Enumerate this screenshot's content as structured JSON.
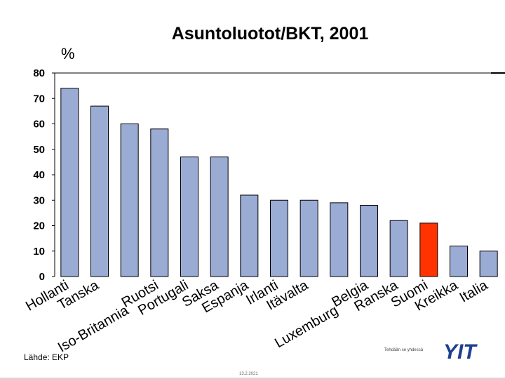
{
  "slide": {
    "title": "Asuntoluotot/BKT, 2001",
    "unit": "%",
    "source": "Lähde: EKP",
    "tagline": "Tehdään se yhdessä",
    "date": "13.2.2021",
    "logo_text": "YIT"
  },
  "colors": {
    "bar": "#9aabd4",
    "highlight": "#ff3300",
    "logo": "#1f3f8f"
  },
  "chart_data": {
    "type": "bar",
    "title": "Asuntoluotot/BKT, 2001",
    "ylabel": "%",
    "xlabel": "",
    "ylim": [
      0,
      80
    ],
    "yticks": [
      0,
      10,
      20,
      30,
      40,
      50,
      60,
      70,
      80
    ],
    "categories": [
      "Hollanti",
      "Tanska",
      "Iso-Britannia",
      "Ruotsi",
      "Portugali",
      "Saksa",
      "Espanja",
      "Irlanti",
      "Itävalta",
      "Luxemburg",
      "Belgia",
      "Ranska",
      "Suomi",
      "Kreikka",
      "Italia"
    ],
    "values": [
      74,
      67,
      60,
      58,
      47,
      47,
      32,
      30,
      30,
      29,
      28,
      22,
      21,
      12,
      10
    ],
    "highlight_category": "Suomi",
    "grid": false,
    "legend": "none"
  }
}
